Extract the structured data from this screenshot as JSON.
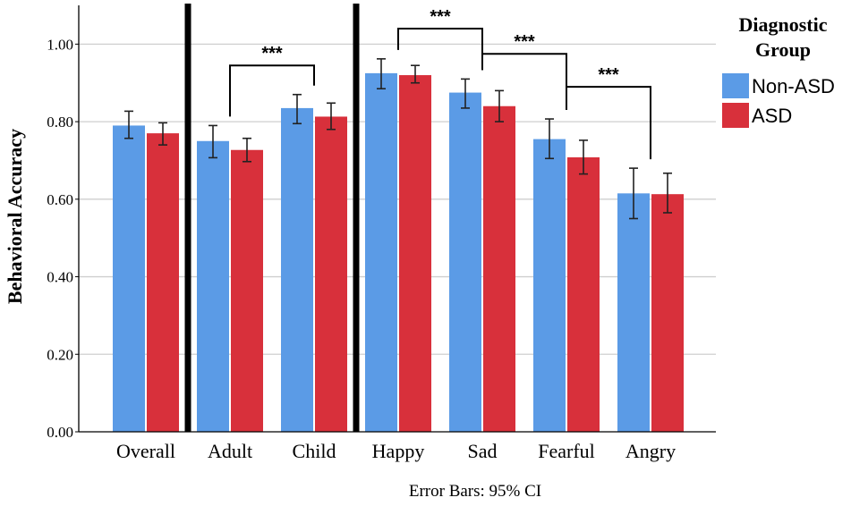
{
  "chart_data": {
    "type": "bar",
    "title": "",
    "xlabel": "",
    "ylabel": "Behavioral Accuracy",
    "ylim": [
      0,
      1.1
    ],
    "yticks": [
      "0.00",
      "0.20",
      "0.40",
      "0.60",
      "0.80",
      "1.00"
    ],
    "ytick_values": [
      0,
      0.2,
      0.4,
      0.6,
      0.8,
      1.0
    ],
    "categories": [
      "Overall",
      "Adult",
      "Child",
      "Happy",
      "Sad",
      "Fearful",
      "Angry"
    ],
    "series": [
      {
        "name": "Non-ASD",
        "color": "#5b9be6",
        "values": [
          0.79,
          0.75,
          0.835,
          0.925,
          0.875,
          0.755,
          0.615
        ],
        "ci_low": [
          0.757,
          0.707,
          0.795,
          0.885,
          0.835,
          0.705,
          0.55
        ],
        "ci_high": [
          0.827,
          0.79,
          0.87,
          0.962,
          0.91,
          0.807,
          0.68
        ]
      },
      {
        "name": "ASD",
        "color": "#d8303b",
        "values": [
          0.77,
          0.727,
          0.813,
          0.92,
          0.84,
          0.708,
          0.613
        ],
        "ci_low": [
          0.74,
          0.697,
          0.78,
          0.9,
          0.8,
          0.665,
          0.565
        ],
        "ci_high": [
          0.797,
          0.757,
          0.848,
          0.945,
          0.88,
          0.752,
          0.667
        ]
      }
    ],
    "separators_after": [
      "Overall",
      "Child"
    ],
    "significance": [
      {
        "label": "***",
        "from": "Adult",
        "to": "Child",
        "level": 0.945
      },
      {
        "label": "***",
        "from": "Happy",
        "to": "Sad",
        "level": 1.04
      },
      {
        "label": "***",
        "from": "Sad",
        "to": "Fearful",
        "level": 0.975
      },
      {
        "label": "***",
        "from": "Fearful",
        "to": "Angry",
        "level": 0.89
      }
    ],
    "legend": {
      "title_line1": "Diagnostic",
      "title_line2": "Group",
      "position": "right"
    },
    "footnote": "Error Bars: 95% CI"
  }
}
